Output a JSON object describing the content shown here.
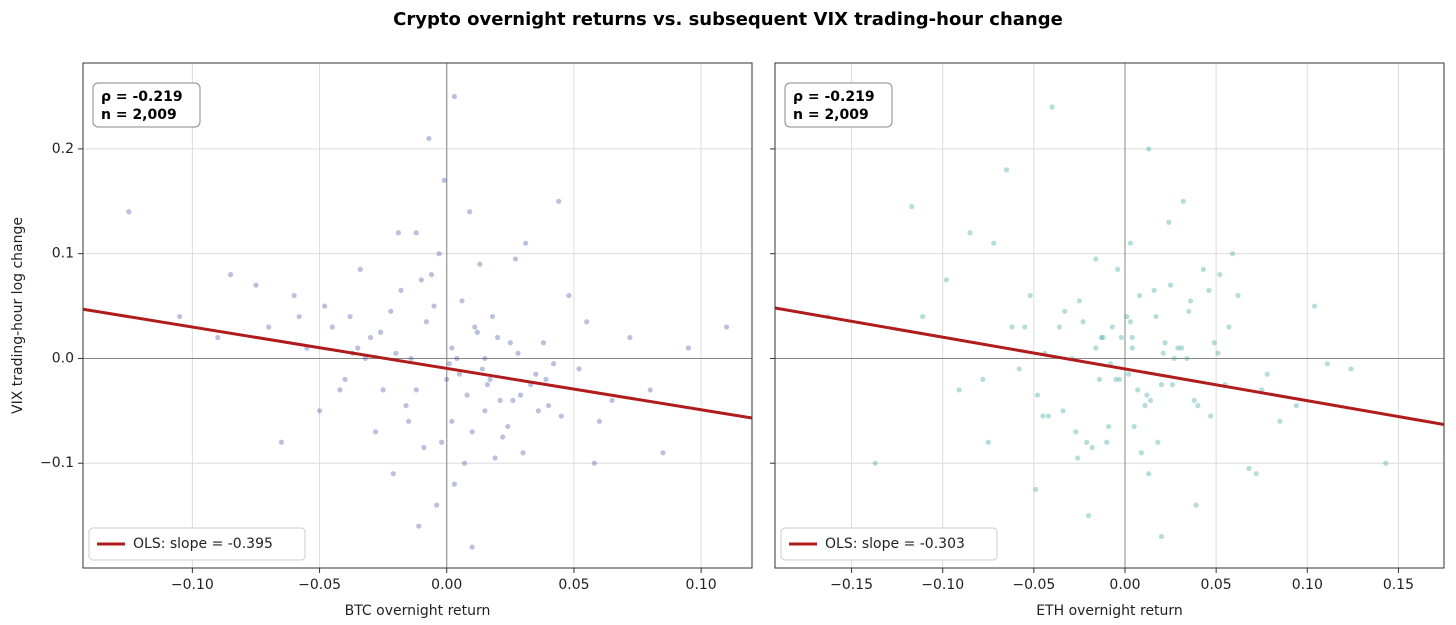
{
  "title": "Crypto overnight returns vs. subsequent VIX trading-hour change",
  "chart_data": [
    {
      "type": "scatter",
      "xlabel": "BTC overnight return",
      "ylabel": "VIX trading-hour log change",
      "color": "#3a4e9c",
      "xlim": [
        -0.143,
        0.12
      ],
      "ylim": [
        -0.2,
        0.282
      ],
      "xticks": [
        {
          "value": -0.1,
          "label": "−0.10"
        },
        {
          "value": -0.05,
          "label": "−0.05"
        },
        {
          "value": 0,
          "label": "0.00"
        },
        {
          "value": 0.05,
          "label": "0.05"
        },
        {
          "value": 0.1,
          "label": "0.10"
        }
      ],
      "yticks": [
        {
          "value": -0.1,
          "label": "−0.1"
        },
        {
          "value": 0,
          "label": "0.0"
        },
        {
          "value": 0.1,
          "label": "0.1"
        },
        {
          "value": 0.2,
          "label": "0.2"
        }
      ],
      "grid": true,
      "zero_lines": true,
      "legend": "lower left",
      "annotation": [
        "ρ = -0.219",
        "n = 2,009"
      ],
      "ols": {
        "label": "OLS: slope = -0.395",
        "slope": -0.395,
        "intercept": -0.0095,
        "color": "#b01c1c"
      },
      "x": [
        -0.012,
        0.005,
        0.021,
        -0.03,
        0.002,
        0.015,
        -0.008,
        0.033,
        -0.045,
        0.01,
        -0.02,
        0.0,
        0.025,
        -0.015,
        0.04,
        -0.005,
        0.008,
        -0.035,
        0.018,
        -0.002,
        0.052,
        -0.06,
        0.012,
        -0.025,
        0.03,
        -0.01,
        0.004,
        0.045,
        -0.04,
        0.02,
        -0.07,
        0.065,
        -0.003,
        0.014,
        -0.022,
        0.028,
        -0.05,
        0.007,
        0.038,
        -0.018,
        0.001,
        -0.028,
        0.055,
        -0.012,
        0.016,
        -0.038,
        0.024,
        -0.006,
        0.08,
        -0.09,
        0.009,
        -0.016,
        0.035,
        -0.032,
        0.003,
        0.048,
        -0.055,
        0.011,
        -0.009,
        0.026,
        -0.105,
        0.095,
        -0.001,
        0.019,
        -0.026,
        0.042,
        -0.065,
        0.013,
        0.06,
        -0.042,
        0.006,
        -0.014,
        0.031,
        -0.048,
        0.022,
        -0.004,
        0.072,
        -0.075,
        0.017,
        -0.021,
        0.11,
        -0.125,
        0.002,
        0.036,
        -0.034,
        0.044,
        -0.011,
        0.027,
        -0.058,
        0.058,
        -0.007,
        0.039,
        -0.085,
        0.085,
        0.01,
        -0.019,
        0.003,
        -0.037,
        0.029,
        0.015
      ],
      "y": [
        -0.03,
        -0.015,
        -0.04,
        0.02,
        0.01,
        -0.05,
        0.035,
        -0.025,
        0.03,
        -0.07,
        0.005,
        -0.02,
        0.015,
        -0.06,
        -0.045,
        0.05,
        -0.035,
        0.01,
        0.04,
        -0.08,
        -0.01,
        0.06,
        0.025,
        -0.03,
        -0.09,
        0.075,
        0.0,
        -0.055,
        -0.02,
        0.02,
        0.03,
        -0.04,
        0.1,
        -0.01,
        0.045,
        0.005,
        -0.05,
        -0.1,
        0.015,
        0.065,
        -0.005,
        -0.07,
        0.035,
        0.12,
        -0.025,
        0.04,
        -0.065,
        0.08,
        -0.03,
        0.02,
        0.14,
        -0.045,
        -0.015,
        0.0,
        -0.12,
        0.06,
        0.01,
        0.03,
        -0.085,
        -0.04,
        0.04,
        0.01,
        0.17,
        -0.095,
        0.025,
        -0.005,
        -0.08,
        0.09,
        -0.06,
        -0.03,
        0.055,
        0.0,
        0.11,
        0.05,
        -0.075,
        -0.14,
        0.02,
        0.07,
        -0.02,
        -0.11,
        0.03,
        0.14,
        -0.06,
        -0.05,
        0.085,
        0.15,
        -0.16,
        0.095,
        0.04,
        -0.1,
        0.21,
        -0.02,
        0.08,
        -0.09,
        -0.18,
        0.12,
        0.25,
        0.005,
        -0.035,
        0.0
      ]
    },
    {
      "type": "scatter",
      "xlabel": "ETH overnight return",
      "color": "#2a9d9a",
      "xlim": [
        -0.192,
        0.175
      ],
      "ylim": [
        -0.2,
        0.282
      ],
      "xticks": [
        {
          "value": -0.15,
          "label": "−0.15"
        },
        {
          "value": -0.1,
          "label": "−0.10"
        },
        {
          "value": -0.05,
          "label": "−0.05"
        },
        {
          "value": 0,
          "label": "0.00"
        },
        {
          "value": 0.05,
          "label": "0.05"
        },
        {
          "value": 0.1,
          "label": "0.10"
        },
        {
          "value": 0.15,
          "label": "0.15"
        }
      ],
      "yticks": [
        -0.1,
        0,
        0.1,
        0.2
      ],
      "grid": true,
      "zero_lines": true,
      "legend": "lower left",
      "annotation": [
        "ρ = -0.219",
        "n = 2,009"
      ],
      "ols": {
        "label": "OLS: slope = -0.303",
        "slope": -0.303,
        "intercept": -0.01,
        "color": "#b01c1c"
      },
      "x": [
        -0.016,
        0.007,
        0.027,
        -0.04,
        0.003,
        0.02,
        -0.01,
        0.043,
        -0.058,
        0.013,
        -0.026,
        0.001,
        0.032,
        -0.02,
        0.052,
        -0.007,
        0.011,
        -0.045,
        0.024,
        -0.003,
        0.068,
        -0.078,
        0.016,
        -0.033,
        0.039,
        -0.013,
        0.005,
        0.059,
        -0.052,
        0.026,
        -0.091,
        0.085,
        -0.004,
        0.018,
        -0.029,
        0.036,
        -0.065,
        0.009,
        0.049,
        -0.023,
        0.002,
        -0.036,
        0.072,
        -0.016,
        0.021,
        -0.049,
        0.031,
        -0.008,
        0.104,
        -0.117,
        0.012,
        -0.021,
        0.046,
        -0.042,
        0.004,
        0.062,
        -0.072,
        0.014,
        -0.012,
        0.034,
        -0.137,
        0.124,
        -0.002,
        0.025,
        -0.034,
        0.055,
        -0.085,
        0.017,
        0.078,
        -0.055,
        0.008,
        -0.018,
        0.04,
        -0.062,
        0.029,
        -0.005,
        0.094,
        -0.098,
        0.022,
        -0.027,
        0.143,
        -0.163,
        0.003,
        0.047,
        -0.044,
        0.057,
        -0.014,
        0.035,
        -0.075,
        0.075,
        -0.009,
        0.051,
        -0.111,
        0.111,
        0.013,
        -0.025,
        0.004,
        -0.048,
        0.038,
        0.02
      ],
      "y": [
        0.01,
        -0.03,
        0.0,
        0.24,
        0.11,
        -0.17,
        -0.08,
        0.085,
        -0.01,
        0.2,
        -0.095,
        0.04,
        0.15,
        -0.15,
        0.08,
        0.03,
        -0.045,
        -0.055,
        0.13,
        -0.02,
        -0.105,
        -0.02,
        0.065,
        0.045,
        -0.14,
        0.02,
        -0.065,
        0.1,
        0.06,
        -0.025,
        -0.03,
        -0.06,
        0.085,
        -0.08,
        0.0,
        0.055,
        0.18,
        -0.09,
        0.015,
        0.035,
        -0.015,
        0.03,
        -0.11,
        0.095,
        0.005,
        -0.125,
        0.01,
        -0.005,
        0.05,
        0.145,
        -0.035,
        -0.08,
        0.065,
        -0.055,
        0.01,
        0.06,
        0.11,
        -0.04,
        0.02,
        0.0,
        -0.1,
        -0.01,
        0.02,
        0.07,
        -0.05,
        -0.025,
        0.12,
        0.04,
        -0.015,
        0.03,
        0.06,
        -0.085,
        -0.045,
        0.03,
        0.01,
        -0.02,
        -0.045,
        0.075,
        0.015,
        -0.07,
        -0.1,
        0.04,
        0.035,
        -0.055,
        0.005,
        0.03,
        -0.02,
        0.045,
        -0.08,
        -0.03,
        -0.065,
        0.005,
        0.04,
        -0.005,
        -0.11,
        0.055,
        0.02,
        -0.035,
        -0.04,
        -0.025
      ]
    }
  ]
}
